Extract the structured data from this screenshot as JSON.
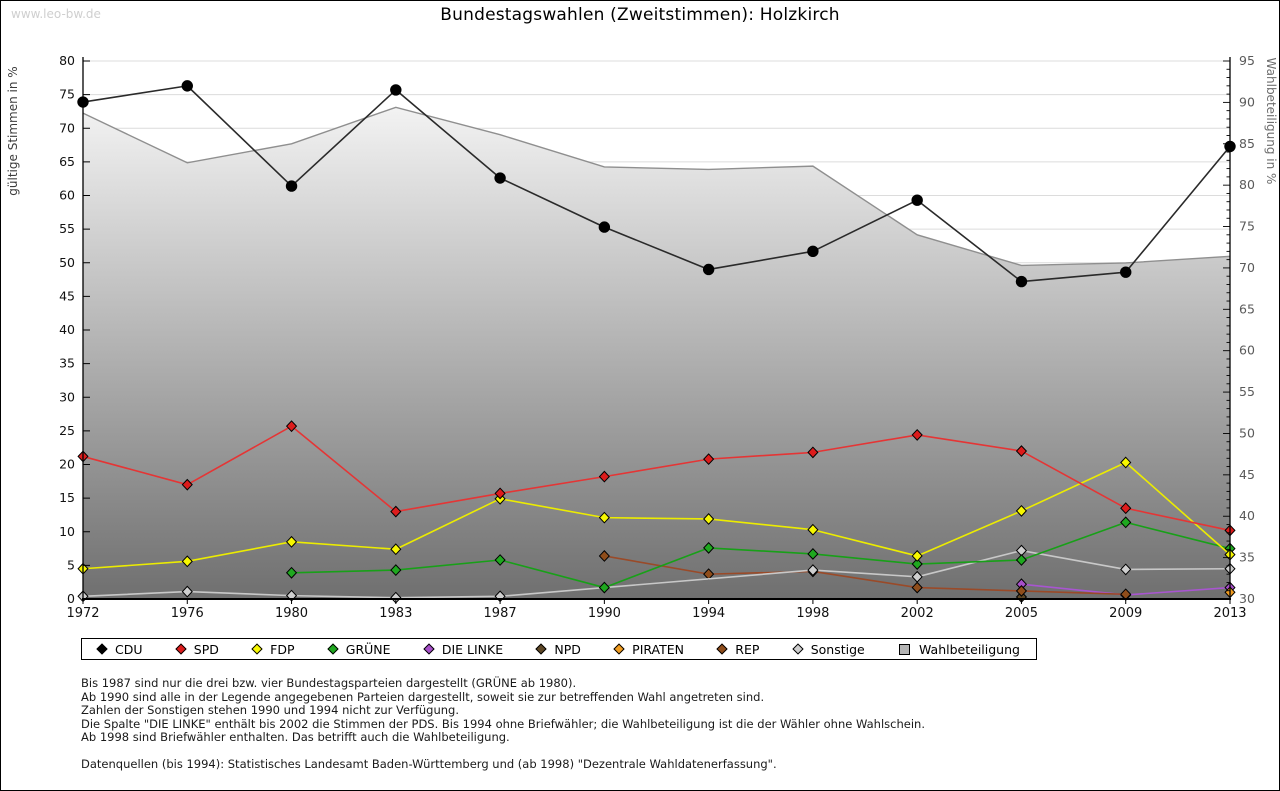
{
  "watermark": "www.leo-bw.de",
  "title": "Bundestagswahlen (Zweitstimmen): Holzkirch",
  "axes": {
    "left_label": "gültige Stimmen in %",
    "right_label": "Wahlbeteiligung in %"
  },
  "footnotes": [
    "Bis 1987 sind nur die drei bzw. vier Bundestagsparteien dargestellt (GRÜNE ab 1980).",
    "Ab 1990 sind alle in der Legende angegebenen Parteien dargestellt, soweit sie zur betreffenden Wahl angetreten sind.",
    "Zahlen der Sonstigen stehen 1990 und 1994 nicht zur Verfügung.",
    "Die Spalte \"DIE LINKE\" enthält bis 2002 die Stimmen der PDS. Bis 1994 ohne Briefwähler; die Wahlbeteiligung ist die der Wähler ohne Wahlschein.",
    "Ab 1998 sind Briefwähler enthalten. Das betrifft auch die Wahlbeteiligung.",
    "",
    "Datenquellen (bis 1994): Statistisches Landesamt Baden-Württemberg und (ab 1998) \"Dezentrale Wahldatenerfassung\"."
  ],
  "chart_data": {
    "type": "line",
    "title": "Bundestagswahlen (Zweitstimmen): Holzkirch",
    "x_categories": [
      "1972",
      "1976",
      "1980",
      "1983",
      "1987",
      "1990",
      "1994",
      "1998",
      "2002",
      "2005",
      "2009",
      "2013"
    ],
    "ylabel_left": "gültige Stimmen in %",
    "ylabel_right": "Wahlbeteiligung in %",
    "ylim_left": [
      0,
      80
    ],
    "ylim_right": [
      30,
      95
    ],
    "ytick_step": 5,
    "ytick_minor_right": 1,
    "grid": true,
    "legend_position": "bottom",
    "background_gradient": [
      "#ffffff",
      "#6f6f6f"
    ],
    "grid_color": "#dcdcdc",
    "series": [
      {
        "name": "CDU",
        "axis": "left",
        "marker": "circle",
        "color": "#000000",
        "line_color": "#2a2a2a",
        "values": [
          73.9,
          76.3,
          61.4,
          75.7,
          62.6,
          55.3,
          49.0,
          51.7,
          59.3,
          47.2,
          48.6,
          67.3
        ]
      },
      {
        "name": "SPD",
        "axis": "left",
        "marker": "diamond",
        "color": "#dd1c1c",
        "line_color": "#e53535",
        "values": [
          21.2,
          17.0,
          25.7,
          13.0,
          15.7,
          18.2,
          20.8,
          21.8,
          24.4,
          22.0,
          13.5,
          10.2
        ]
      },
      {
        "name": "FDP",
        "axis": "left",
        "marker": "diamond",
        "color": "#f7f700",
        "line_color": "#ecec00",
        "values": [
          4.5,
          5.6,
          8.5,
          7.4,
          14.9,
          12.1,
          11.9,
          10.3,
          6.4,
          13.1,
          20.3,
          6.6
        ]
      },
      {
        "name": "GRÜNE",
        "axis": "left",
        "marker": "diamond",
        "color": "#1fa81f",
        "line_color": "#18a018",
        "values": [
          null,
          null,
          3.9,
          4.3,
          5.8,
          1.7,
          7.6,
          6.7,
          5.2,
          5.8,
          11.4,
          7.5
        ]
      },
      {
        "name": "DIE LINKE",
        "axis": "left",
        "marker": "diamond",
        "color": "#a74fc9",
        "line_color": "#a855d0",
        "values": [
          null,
          null,
          null,
          null,
          null,
          null,
          null,
          null,
          null,
          2.2,
          0.6,
          1.7
        ]
      },
      {
        "name": "NPD",
        "axis": "left",
        "marker": "diamond",
        "color": "#5e4726",
        "line_color": "#5e4726",
        "values": [
          null,
          null,
          null,
          null,
          null,
          null,
          null,
          null,
          null,
          0.3,
          null,
          null
        ]
      },
      {
        "name": "PIRATEN",
        "axis": "left",
        "marker": "diamond",
        "color": "#f29d20",
        "line_color": "#f29d20",
        "values": [
          null,
          null,
          null,
          null,
          null,
          null,
          null,
          null,
          null,
          null,
          null,
          1.0
        ]
      },
      {
        "name": "REP",
        "axis": "left",
        "marker": "diamond",
        "color": "#8f4d1b",
        "line_color": "#9a4a28",
        "values": [
          null,
          null,
          null,
          null,
          null,
          6.4,
          3.7,
          4.1,
          1.7,
          1.2,
          0.7,
          null
        ]
      },
      {
        "name": "Sonstige",
        "axis": "left",
        "marker": "diamond",
        "color": "#cfcfcf",
        "line_color": "#c8c8c8",
        "values": [
          0.4,
          1.1,
          0.5,
          0.2,
          0.4,
          null,
          null,
          4.3,
          3.3,
          7.2,
          4.4,
          4.5
        ]
      },
      {
        "name": "Wahlbeteiligung",
        "axis": "right",
        "marker": "none",
        "style": "area",
        "color": "#b4b4b4",
        "line_color": "#8f8f8f",
        "values": [
          88.7,
          82.7,
          85.0,
          89.4,
          86.1,
          82.2,
          81.9,
          82.3,
          74.0,
          70.3,
          70.6,
          71.4
        ]
      }
    ],
    "draw_order": [
      "Wahlbeteiligung",
      "NPD",
      "DIE LINKE",
      "REP",
      "PIRATEN",
      "Sonstige",
      "GRÜNE",
      "FDP",
      "SPD",
      "CDU"
    ]
  }
}
